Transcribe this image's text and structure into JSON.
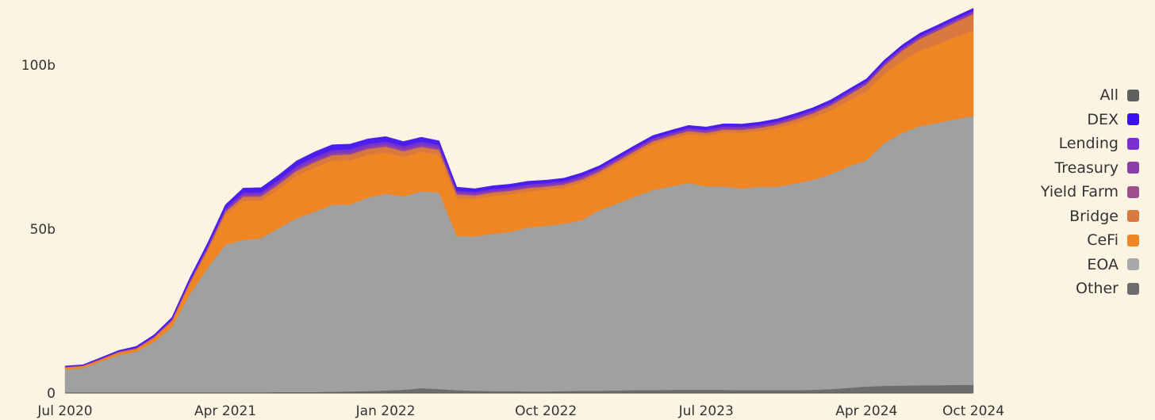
{
  "chart_data": {
    "type": "area",
    "stacked": true,
    "x": [
      "2020-07",
      "2020-08",
      "2020-09",
      "2020-10",
      "2020-11",
      "2020-12",
      "2021-01",
      "2021-02",
      "2021-03",
      "2021-04",
      "2021-05",
      "2021-06",
      "2021-07",
      "2021-08",
      "2021-09",
      "2021-10",
      "2021-11",
      "2021-12",
      "2022-01",
      "2022-02",
      "2022-03",
      "2022-04",
      "2022-05",
      "2022-06",
      "2022-07",
      "2022-08",
      "2022-09",
      "2022-10",
      "2022-11",
      "2022-12",
      "2023-01",
      "2023-02",
      "2023-03",
      "2023-04",
      "2023-05",
      "2023-06",
      "2023-07",
      "2023-08",
      "2023-09",
      "2023-10",
      "2023-11",
      "2023-12",
      "2024-01",
      "2024-02",
      "2024-03",
      "2024-04",
      "2024-05",
      "2024-06",
      "2024-07",
      "2024-08",
      "2024-09",
      "2024-10"
    ],
    "x_ticks": [
      "Jul 2020",
      "Apr 2021",
      "Jan 2022",
      "Oct 2022",
      "Jul 2023",
      "Apr 2024",
      "Oct 2024"
    ],
    "y_ticks": [
      "0",
      "50b",
      "100b"
    ],
    "ylim": [
      0,
      120
    ],
    "grid": false,
    "legend_position": "right",
    "legend": [
      "All",
      "DEX",
      "Lending",
      "Treasury",
      "Yield Farm",
      "Bridge",
      "CeFi",
      "EOA",
      "Other"
    ],
    "series": [
      {
        "name": "Other",
        "color": "#6d6d6d",
        "values": [
          0.1,
          0.1,
          0.1,
          0.1,
          0.1,
          0.1,
          0.1,
          0.1,
          0.1,
          0.2,
          0.2,
          0.2,
          0.3,
          0.3,
          0.3,
          0.4,
          0.5,
          0.6,
          0.8,
          1.0,
          1.5,
          1.2,
          0.9,
          0.7,
          0.6,
          0.6,
          0.5,
          0.5,
          0.6,
          0.7,
          0.7,
          0.8,
          0.9,
          0.9,
          1.0,
          1.0,
          1.0,
          1.0,
          0.9,
          0.9,
          0.9,
          0.9,
          1.0,
          1.2,
          1.6,
          2.0,
          2.2,
          2.3,
          2.4,
          2.4,
          2.5,
          2.5
        ]
      },
      {
        "name": "EOA",
        "color": "#a0a0a0",
        "values": [
          7.1,
          7.5,
          9.5,
          11.5,
          12.5,
          15.5,
          20,
          30,
          38,
          45,
          46.5,
          47,
          50,
          53,
          55,
          57,
          57,
          59,
          60,
          59,
          60,
          60,
          47,
          47,
          48,
          48.5,
          50,
          50.5,
          51,
          52,
          55,
          57,
          59,
          61,
          62,
          63,
          62,
          62,
          61.5,
          62,
          62,
          63,
          64,
          65.5,
          67.5,
          69,
          74,
          77,
          79,
          80,
          81,
          82
        ]
      },
      {
        "name": "CeFi",
        "color": "#ef8523",
        "values": [
          0.5,
          0.5,
          0.5,
          0.6,
          0.7,
          1.0,
          1.5,
          3.0,
          5.0,
          9.0,
          12.0,
          11.5,
          12.0,
          13.0,
          13.5,
          13.5,
          13.5,
          13.0,
          12.5,
          12.0,
          12.0,
          11.5,
          11.5,
          11.5,
          11.5,
          11.5,
          11.0,
          11.0,
          11.0,
          11.5,
          11.0,
          12.0,
          13.0,
          14.0,
          14.5,
          15.0,
          15.5,
          16.5,
          17.0,
          17.0,
          18.0,
          18.5,
          19.0,
          19.5,
          20.0,
          21.0,
          21.0,
          22.0,
          23.0,
          24.0,
          25.0,
          26.0
        ]
      },
      {
        "name": "Bridge",
        "color": "#d9793e",
        "values": [
          0.2,
          0.2,
          0.2,
          0.3,
          0.3,
          0.4,
          0.5,
          0.6,
          0.8,
          1.0,
          1.1,
          1.2,
          1.3,
          1.4,
          1.5,
          1.6,
          1.7,
          1.8,
          1.8,
          1.7,
          1.5,
          1.4,
          1.2,
          1.0,
          1.0,
          1.0,
          1.0,
          0.9,
          0.9,
          0.9,
          0.8,
          0.8,
          0.8,
          0.8,
          0.8,
          0.8,
          0.8,
          0.8,
          0.8,
          0.9,
          0.9,
          1.0,
          1.2,
          1.4,
          1.7,
          2.0,
          2.5,
          3.0,
          3.5,
          4.0,
          4.5,
          5.0
        ]
      },
      {
        "name": "Yield Farm",
        "color": "#9e4d8d",
        "values": [
          0.05,
          0.05,
          0.05,
          0.05,
          0.05,
          0.1,
          0.1,
          0.1,
          0.2,
          0.2,
          0.3,
          0.3,
          0.3,
          0.3,
          0.3,
          0.3,
          0.3,
          0.3,
          0.3,
          0.3,
          0.3,
          0.3,
          0.2,
          0.2,
          0.2,
          0.2,
          0.2,
          0.2,
          0.2,
          0.2,
          0.2,
          0.2,
          0.2,
          0.2,
          0.2,
          0.2,
          0.2,
          0.2,
          0.2,
          0.2,
          0.2,
          0.2,
          0.2,
          0.2,
          0.2,
          0.2,
          0.2,
          0.2,
          0.2,
          0.2,
          0.2,
          0.2
        ]
      },
      {
        "name": "Treasury",
        "color": "#8b3faa",
        "values": [
          0.05,
          0.05,
          0.05,
          0.05,
          0.1,
          0.1,
          0.1,
          0.2,
          0.2,
          0.3,
          0.4,
          0.4,
          0.4,
          0.5,
          0.5,
          0.5,
          0.5,
          0.5,
          0.5,
          0.5,
          0.5,
          0.5,
          0.4,
          0.4,
          0.4,
          0.4,
          0.4,
          0.4,
          0.4,
          0.4,
          0.4,
          0.4,
          0.4,
          0.4,
          0.4,
          0.4,
          0.4,
          0.4,
          0.4,
          0.4,
          0.4,
          0.4,
          0.4,
          0.4,
          0.4,
          0.4,
          0.4,
          0.4,
          0.4,
          0.4,
          0.4,
          0.4
        ]
      },
      {
        "name": "Lending",
        "color": "#7a31c9",
        "values": [
          0.05,
          0.05,
          0.1,
          0.1,
          0.1,
          0.1,
          0.2,
          0.3,
          0.4,
          0.5,
          0.6,
          0.6,
          0.7,
          0.7,
          0.8,
          0.8,
          0.8,
          0.8,
          0.8,
          0.8,
          0.8,
          0.7,
          0.5,
          0.5,
          0.5,
          0.5,
          0.5,
          0.5,
          0.5,
          0.5,
          0.4,
          0.4,
          0.4,
          0.4,
          0.4,
          0.4,
          0.4,
          0.4,
          0.4,
          0.4,
          0.4,
          0.4,
          0.4,
          0.4,
          0.4,
          0.4,
          0.4,
          0.4,
          0.4,
          0.4,
          0.4,
          0.4
        ]
      },
      {
        "name": "DEX",
        "color": "#4a1fee",
        "values": [
          0.2,
          0.2,
          0.3,
          0.3,
          0.4,
          0.5,
          0.6,
          0.8,
          1.0,
          1.2,
          1.4,
          1.4,
          1.5,
          1.6,
          1.6,
          1.6,
          1.6,
          1.5,
          1.5,
          1.4,
          1.4,
          1.3,
          1.1,
          1.0,
          1.0,
          1.0,
          1.0,
          0.9,
          0.9,
          0.9,
          0.8,
          0.8,
          0.8,
          0.8,
          0.8,
          0.8,
          0.8,
          0.8,
          0.8,
          0.8,
          0.8,
          0.8,
          0.8,
          0.8,
          0.8,
          0.8,
          0.8,
          0.8,
          0.8,
          0.8,
          0.8,
          0.8
        ]
      }
    ],
    "legend_colors": {
      "All": "#606060",
      "DEX": "#3a0ff5",
      "Lending": "#7a31c9",
      "Treasury": "#8b3faa",
      "Yield Farm": "#9e4d8d",
      "Bridge": "#d9793e",
      "CeFi": "#ef8523",
      "EOA": "#a9a9a9",
      "Other": "#6d6d6d"
    }
  },
  "background_color": "#fcf4e3"
}
